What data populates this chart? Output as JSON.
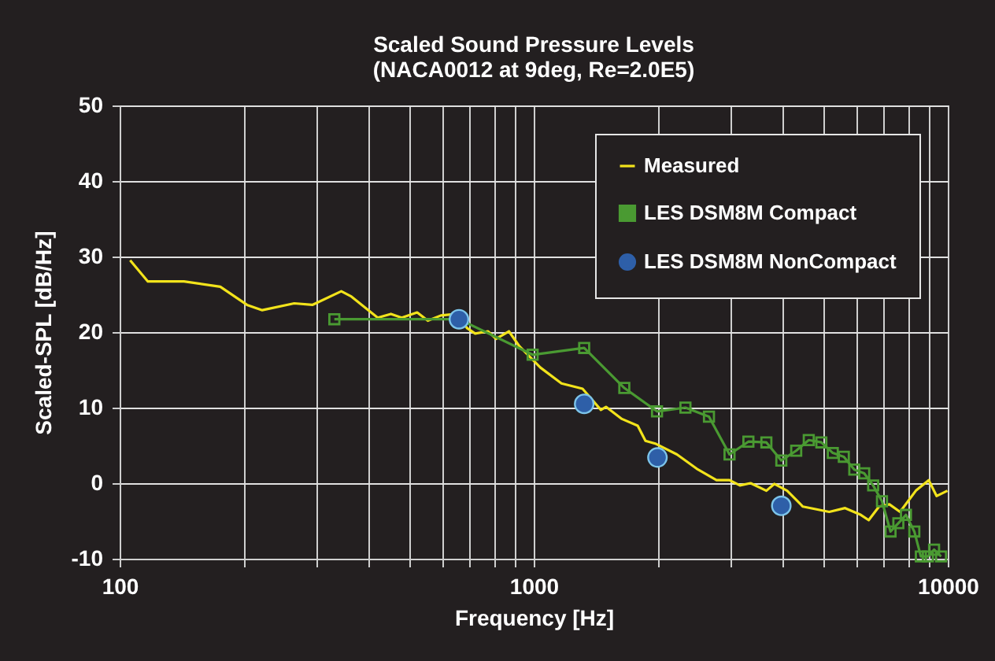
{
  "chart_data": {
    "type": "line",
    "title": "Scaled Sound Pressure Levels",
    "subtitle": "(NACA0012 at 9deg, Re=2.0E5)",
    "xlabel": "Frequency [Hz]",
    "ylabel": "Scaled-SPL [dB/Hz]",
    "log": "x",
    "grid": true,
    "legend": "top right",
    "xlim": [
      100,
      10000
    ],
    "ylim": [
      -10,
      50
    ],
    "xticks": [
      100,
      {
        "value": 200,
        "label": null
      },
      {
        "value": 300,
        "label": null
      },
      {
        "value": 400,
        "label": null
      },
      {
        "value": 500,
        "label": null
      },
      {
        "value": 600,
        "label": null
      },
      {
        "value": 700,
        "label": null
      },
      {
        "value": 800,
        "label": null
      },
      {
        "value": 900,
        "label": null
      },
      1000,
      {
        "value": 2000,
        "label": null
      },
      {
        "value": 3000,
        "label": null
      },
      {
        "value": 4000,
        "label": null
      },
      {
        "value": 5000,
        "label": null
      },
      {
        "value": 6000,
        "label": null
      },
      {
        "value": 7000,
        "label": null
      },
      {
        "value": 8000,
        "label": null
      },
      {
        "value": 9000,
        "label": null
      },
      10000
    ],
    "yticks": [
      -10,
      0,
      10,
      20,
      30,
      40,
      50
    ],
    "series": [
      {
        "name": "Measured",
        "marker": "none",
        "color": "#f2e31b",
        "x": [
          106,
          117,
          143,
          175,
          203,
          221,
          264,
          292,
          343,
          363,
          420,
          452,
          480,
          523,
          555,
          597,
          652,
          691,
          722,
          776,
          811,
          871,
          924,
          1038,
          1167,
          1312,
          1453,
          1495,
          1633,
          1783,
          1862,
          1974,
          2218,
          2493,
          2763,
          2971,
          3148,
          3340,
          3647,
          3811,
          4093,
          4467,
          5173,
          5649,
          6166,
          6442,
          6823,
          7228,
          7670,
          8373,
          8995,
          9397,
          9980
        ],
        "values": [
          29.5,
          26.7,
          26.7,
          26.0,
          23.6,
          22.9,
          23.8,
          23.6,
          25.4,
          24.7,
          21.9,
          22.4,
          21.9,
          22.6,
          21.5,
          22.2,
          22.4,
          20.5,
          19.8,
          20.1,
          19.1,
          20.1,
          18.1,
          15.3,
          13.2,
          12.5,
          9.7,
          10.1,
          8.5,
          7.6,
          5.6,
          5.2,
          3.8,
          1.8,
          0.4,
          0.4,
          -0.3,
          0,
          -1.0,
          -0.1,
          -1.0,
          -3.1,
          -3.8,
          -3.3,
          -4.2,
          -4.9,
          -3.1,
          -2.8,
          -3.8,
          -1.0,
          0.4,
          -1.7,
          -1.0
        ]
      },
      {
        "name": "LES DSM8M Compact",
        "marker": "square",
        "color": "#4a9a32",
        "x": [
          330,
          660,
          994,
          1324,
          1655,
          1985,
          2325,
          2650,
          2971,
          3300,
          3647,
          3963,
          4305,
          4616,
          4951,
          5276,
          5610,
          5946,
          6283,
          6604,
          6936,
          7274,
          7598,
          7925,
          8303,
          8610,
          8953,
          9267,
          9634
        ],
        "values": [
          21.7,
          21.7,
          17.0,
          17.9,
          12.6,
          9.5,
          10.0,
          8.8,
          3.8,
          5.5,
          5.4,
          3.0,
          4.3,
          5.7,
          5.4,
          4.0,
          3.5,
          1.8,
          1.3,
          -0.3,
          -2.4,
          -6.4,
          -5.3,
          -4.2,
          -6.4,
          -9.7,
          -9.7,
          -8.8,
          -9.7
        ]
      },
      {
        "name": "LES DSM8M NonCompact",
        "type": "scatter",
        "marker": "circle",
        "color": "#2e5fa8",
        "x": [
          660,
          1324,
          1990,
          3963
        ],
        "values": [
          21.7,
          10.5,
          3.4,
          -3.0
        ]
      }
    ]
  }
}
